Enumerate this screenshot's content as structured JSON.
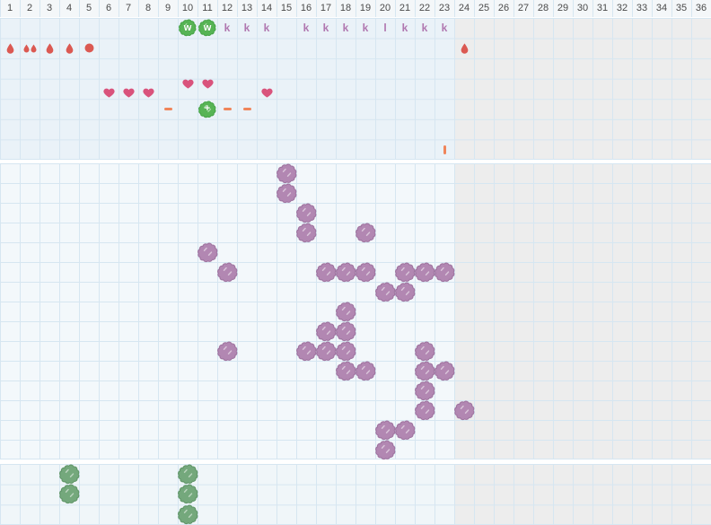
{
  "meta": {
    "description": "planting calendar grid",
    "total_columns": 36,
    "inactive_start_column": 24
  },
  "header": {
    "columns": [
      "1",
      "2",
      "3",
      "4",
      "5",
      "6",
      "7",
      "8",
      "9",
      "10",
      "11",
      "12",
      "13",
      "14",
      "15",
      "16",
      "17",
      "18",
      "19",
      "20",
      "21",
      "22",
      "23",
      "24",
      "25",
      "26",
      "27",
      "28",
      "29",
      "30",
      "31",
      "32",
      "33",
      "34",
      "35",
      "36"
    ]
  },
  "colors": {
    "grid_line": "#d6e6f1",
    "top_band_bg": "#eaf2f8",
    "middle_band_bg": "#f3f8fb",
    "bottom_band_bg": "#f0f6f9",
    "inactive_bg": "#ededed",
    "header_bg": "#f4f7f9",
    "header_text": "#4a4a4a",
    "water_red": "#db5952",
    "heart_pink": "#d9537c",
    "orange": "#f0855a",
    "bright_green": "#57b455",
    "bright_green_dark": "#42a142",
    "sage_green": "#74a87c",
    "sage_green_dark": "#619668",
    "purple": "#b287b2",
    "purple_dark": "#9f74a0",
    "letter_mauve": "#b077b0"
  },
  "sections": [
    {
      "id": "care-top",
      "rows": 7,
      "icons": [
        {
          "type": "w-blob",
          "label": "w",
          "col": 10,
          "row": 1
        },
        {
          "type": "w-blob",
          "label": "w",
          "col": 11,
          "row": 1
        },
        {
          "type": "k-marker",
          "label": "k",
          "col": 12,
          "row": 1
        },
        {
          "type": "k-marker",
          "label": "k",
          "col": 13,
          "row": 1
        },
        {
          "type": "k-marker",
          "label": "k",
          "col": 14,
          "row": 1
        },
        {
          "type": "k-marker",
          "label": "k",
          "col": 16,
          "row": 1
        },
        {
          "type": "k-marker",
          "label": "k",
          "col": 17,
          "row": 1
        },
        {
          "type": "k-marker",
          "label": "k",
          "col": 18,
          "row": 1
        },
        {
          "type": "k-marker",
          "label": "k",
          "col": 19,
          "row": 1
        },
        {
          "type": "l-marker",
          "label": "l",
          "col": 20,
          "row": 1
        },
        {
          "type": "k-marker",
          "label": "k",
          "col": 21,
          "row": 1
        },
        {
          "type": "k-marker",
          "label": "k",
          "col": 22,
          "row": 1
        },
        {
          "type": "k-marker",
          "label": "k",
          "col": 23,
          "row": 1
        },
        {
          "type": "drop",
          "variant": "single",
          "col": 1,
          "row": 2
        },
        {
          "type": "drop",
          "variant": "double",
          "col": 2,
          "row": 2
        },
        {
          "type": "drop",
          "variant": "single",
          "col": 3,
          "row": 2
        },
        {
          "type": "drop",
          "variant": "single",
          "col": 4,
          "row": 2
        },
        {
          "type": "drop",
          "variant": "round",
          "col": 5,
          "row": 2
        },
        {
          "type": "drop",
          "variant": "single",
          "col": 24,
          "row": 2
        },
        {
          "type": "heart",
          "variant": "low",
          "col": 6,
          "row": 4
        },
        {
          "type": "heart",
          "variant": "low",
          "col": 7,
          "row": 4
        },
        {
          "type": "heart",
          "variant": "low",
          "col": 8,
          "row": 4
        },
        {
          "type": "heart",
          "variant": "high",
          "col": 10,
          "row": 4
        },
        {
          "type": "heart",
          "variant": "high",
          "col": 11,
          "row": 4
        },
        {
          "type": "heart",
          "variant": "low",
          "col": 14,
          "row": 4
        },
        {
          "type": "minus",
          "col": 9,
          "row": 5
        },
        {
          "type": "plus-blob",
          "label": "+",
          "col": 11,
          "row": 5
        },
        {
          "type": "minus",
          "col": 12,
          "row": 5
        },
        {
          "type": "minus",
          "col": 13,
          "row": 5
        },
        {
          "type": "vbar",
          "col": 23,
          "row": 7
        }
      ]
    },
    {
      "id": "bloom-middle",
      "rows": 15,
      "icons": [
        {
          "type": "purple-bush",
          "col": 15,
          "row": 1
        },
        {
          "type": "purple-bush",
          "col": 15,
          "row": 2
        },
        {
          "type": "purple-bush",
          "col": 16,
          "row": 3
        },
        {
          "type": "purple-bush",
          "col": 16,
          "row": 4
        },
        {
          "type": "purple-bush",
          "col": 19,
          "row": 4
        },
        {
          "type": "purple-bush",
          "col": 11,
          "row": 5
        },
        {
          "type": "purple-bush",
          "col": 12,
          "row": 6
        },
        {
          "type": "purple-bush",
          "col": 17,
          "row": 6
        },
        {
          "type": "purple-bush",
          "col": 18,
          "row": 6
        },
        {
          "type": "purple-bush",
          "col": 19,
          "row": 6
        },
        {
          "type": "purple-bush",
          "col": 21,
          "row": 6
        },
        {
          "type": "purple-bush",
          "col": 22,
          "row": 6
        },
        {
          "type": "purple-bush",
          "col": 23,
          "row": 6
        },
        {
          "type": "purple-bush",
          "col": 20,
          "row": 7
        },
        {
          "type": "purple-bush",
          "col": 21,
          "row": 7
        },
        {
          "type": "purple-bush",
          "col": 18,
          "row": 8
        },
        {
          "type": "purple-bush",
          "col": 17,
          "row": 9
        },
        {
          "type": "purple-bush",
          "col": 18,
          "row": 9
        },
        {
          "type": "purple-bush",
          "col": 12,
          "row": 10
        },
        {
          "type": "purple-bush",
          "col": 16,
          "row": 10
        },
        {
          "type": "purple-bush",
          "col": 17,
          "row": 10
        },
        {
          "type": "purple-bush",
          "col": 18,
          "row": 10
        },
        {
          "type": "purple-bush",
          "col": 22,
          "row": 10
        },
        {
          "type": "purple-bush",
          "col": 18,
          "row": 11
        },
        {
          "type": "purple-bush",
          "col": 19,
          "row": 11
        },
        {
          "type": "purple-bush",
          "col": 22,
          "row": 11
        },
        {
          "type": "purple-bush",
          "col": 23,
          "row": 11
        },
        {
          "type": "purple-bush",
          "col": 22,
          "row": 12
        },
        {
          "type": "purple-bush",
          "col": 22,
          "row": 13
        },
        {
          "type": "purple-bush",
          "col": 24,
          "row": 13
        },
        {
          "type": "purple-bush",
          "col": 20,
          "row": 14
        },
        {
          "type": "purple-bush",
          "col": 21,
          "row": 14
        },
        {
          "type": "purple-bush",
          "col": 20,
          "row": 15
        }
      ]
    },
    {
      "id": "harvest-bottom",
      "rows": 3,
      "icons": [
        {
          "type": "green-bush",
          "col": 4,
          "row": 1
        },
        {
          "type": "green-bush",
          "col": 4,
          "row": 2
        },
        {
          "type": "green-bush",
          "col": 10,
          "row": 1
        },
        {
          "type": "green-bush",
          "col": 10,
          "row": 2
        },
        {
          "type": "green-bush",
          "col": 10,
          "row": 3
        }
      ]
    }
  ]
}
